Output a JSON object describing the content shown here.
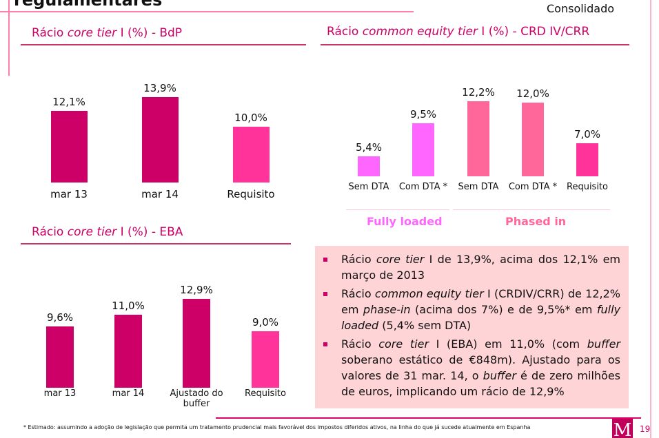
{
  "slide": {
    "title": "regulamentares",
    "scope": "Consolidado",
    "page_number": "19",
    "footnote": "* Estimado: assumindo a adoção de legislação que permita um tratamento prudencial mais favorável dos impostos diferidos ativos, na linha do que já sucede atualmente em Espanha",
    "logo_letter": "M"
  },
  "colors": {
    "dark": "#cc0066",
    "requisito": "#ff3399",
    "fully_loaded": "#ff66ff",
    "phased_in": "#ff6699",
    "box": "#ffd4d6"
  },
  "chart_data": [
    {
      "type": "bar",
      "title": {
        "pre": "Rácio ",
        "italic": "core tier",
        "post": " I (%) - BdP"
      },
      "categories": [
        "mar 13",
        "mar 14",
        "Requisito"
      ],
      "values": [
        12.1,
        13.9,
        10.0
      ],
      "labels": [
        "12,1%",
        "13,9%",
        "10,0%"
      ],
      "bar_colors": [
        "#cc0066",
        "#cc0066",
        "#ff3399"
      ],
      "ylim": [
        2.6,
        14
      ]
    },
    {
      "type": "bar",
      "title": {
        "pre": "Rácio ",
        "italic": "common equity tier",
        "post": " I (%) - CRD IV/CRR"
      },
      "categories": [
        "Sem DTA",
        "Com DTA *",
        "Sem DTA",
        "Com DTA *",
        "Requisito"
      ],
      "values": [
        5.4,
        9.5,
        12.2,
        12.0,
        7.0
      ],
      "labels": [
        "5,4%",
        "9,5%",
        "12,2%",
        "12,0%",
        "7,0%"
      ],
      "bar_colors": [
        "#ff66ff",
        "#ff66ff",
        "#ff6699",
        "#ff6699",
        "#ff3399"
      ],
      "groups": [
        {
          "label": "Fully loaded",
          "color": "#ff66ff"
        },
        {
          "label": "Phased in",
          "color": "#ff6699"
        }
      ],
      "ylim": [
        3,
        13
      ]
    },
    {
      "type": "bar",
      "title": {
        "pre": "Rácio ",
        "italic": "core tier",
        "post": " I (%) - EBA"
      },
      "categories": [
        "mar 13",
        "mar 14",
        "Ajustado do buffer",
        "Requisito"
      ],
      "values": [
        9.6,
        11.0,
        12.9,
        9.0
      ],
      "labels": [
        "9,6%",
        "11,0%",
        "12,9%",
        "9,0%"
      ],
      "bar_colors": [
        "#cc0066",
        "#cc0066",
        "#cc0066",
        "#ff3399"
      ],
      "ylim": [
        2.25,
        13
      ]
    }
  ],
  "highlights": [
    [
      {
        "t": "Rácio "
      },
      {
        "t": "core tier",
        "i": true
      },
      {
        "t": " I de 13,9%, acima dos 12,1% em março de 2013"
      }
    ],
    [
      {
        "t": "Rácio "
      },
      {
        "t": "common equity tier",
        "i": true
      },
      {
        "t": " I (CRDIV/CRR) de 12,2% em "
      },
      {
        "t": "phase-in",
        "i": true
      },
      {
        "t": " (acima dos 7%) e de 9,5%* em "
      },
      {
        "t": "fully loaded",
        "i": true
      },
      {
        "t": " (5,4% sem DTA)"
      }
    ],
    [
      {
        "t": "Rácio "
      },
      {
        "t": "core tier",
        "i": true
      },
      {
        "t": " I (EBA) em 11,0% (com "
      },
      {
        "t": "buffer",
        "i": true
      },
      {
        "t": " soberano estático de €848m). Ajustado para os valores de 31 mar. 14, o "
      },
      {
        "t": "buffer",
        "i": true
      },
      {
        "t": " é de zero milhões de euros, implicando um rácio de 12,9%"
      }
    ]
  ]
}
